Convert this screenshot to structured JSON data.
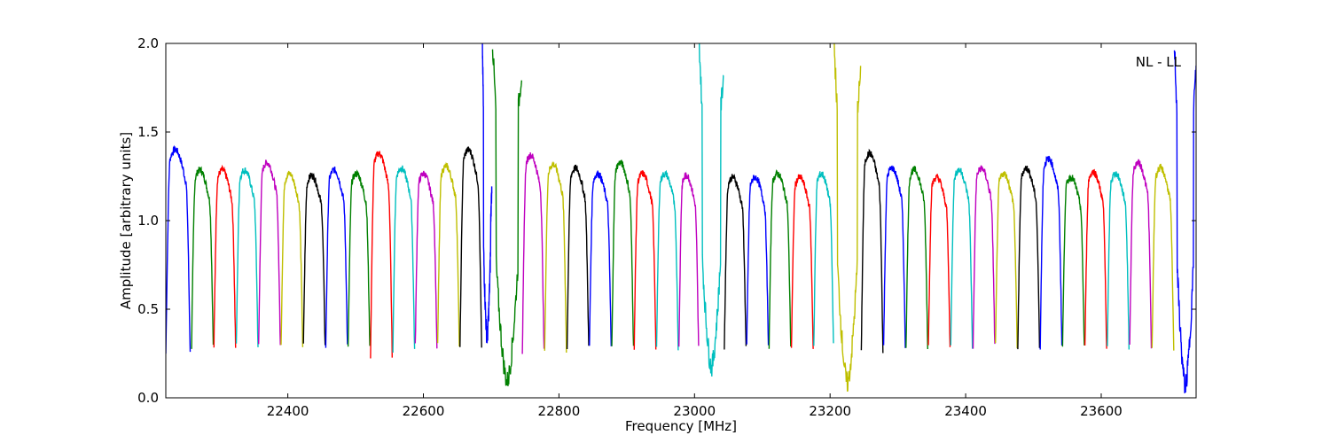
{
  "chart_data": {
    "type": "line",
    "title": "",
    "annotation": "NL - LL",
    "xlabel": "Frequency [MHz]",
    "ylabel": "Amplitude [arbitrary units]",
    "xlim": [
      22220,
      23740
    ],
    "ylim": [
      0.0,
      2.0
    ],
    "xticks": [
      22400,
      22600,
      22800,
      23000,
      23200,
      23400,
      23600
    ],
    "xtick_labels": [
      "22400",
      "22600",
      "22800",
      "23000",
      "23200",
      "23400",
      "23600"
    ],
    "yticks": [
      0.0,
      0.5,
      1.0,
      1.5,
      2.0
    ],
    "ytick_labels": [
      "0.0",
      "0.5",
      "1.0",
      "1.5",
      "2.0"
    ],
    "grid": false,
    "legend": "none",
    "color_cycle": [
      "#0000ff",
      "#008000",
      "#ff0000",
      "#00bfbf",
      "#bf00bf",
      "#bfbf00",
      "#000000"
    ],
    "subband_description": "Repeating sub-band passband segments (~32 MHz wide) centered near amplitude 1.2, each dropping to ~0.25 at its edges; colors cycle blue, green, red, cyan, magenta, olive, black.",
    "subbands": [
      {
        "x_start": 22220,
        "x_end": 22256,
        "color": "#0000ff",
        "peak": 1.35,
        "edge_min": 0.25
      },
      {
        "x_start": 22258,
        "x_end": 22290,
        "color": "#008000",
        "peak": 1.24,
        "edge_min": 0.29
      },
      {
        "x_start": 22291,
        "x_end": 22323,
        "color": "#ff0000",
        "peak": 1.24,
        "edge_min": 0.29
      },
      {
        "x_start": 22324,
        "x_end": 22356,
        "color": "#00bfbf",
        "peak": 1.24,
        "edge_min": 0.29
      },
      {
        "x_start": 22357,
        "x_end": 22389,
        "color": "#bf00bf",
        "peak": 1.28,
        "edge_min": 0.29
      },
      {
        "x_start": 22390,
        "x_end": 22422,
        "color": "#bfbf00",
        "peak": 1.22,
        "edge_min": 0.29
      },
      {
        "x_start": 22423,
        "x_end": 22455,
        "color": "#000000",
        "peak": 1.21,
        "edge_min": 0.29
      },
      {
        "x_start": 22456,
        "x_end": 22488,
        "color": "#0000ff",
        "peak": 1.24,
        "edge_min": 0.29
      },
      {
        "x_start": 22489,
        "x_end": 22521,
        "color": "#008000",
        "peak": 1.22,
        "edge_min": 0.28
      },
      {
        "x_start": 22522,
        "x_end": 22554,
        "color": "#ff0000",
        "peak": 1.33,
        "edge_min": 0.24
      },
      {
        "x_start": 22555,
        "x_end": 22587,
        "color": "#00bfbf",
        "peak": 1.25,
        "edge_min": 0.27
      },
      {
        "x_start": 22588,
        "x_end": 22620,
        "color": "#bf00bf",
        "peak": 1.22,
        "edge_min": 0.29
      },
      {
        "x_start": 22621,
        "x_end": 22653,
        "color": "#bfbf00",
        "peak": 1.26,
        "edge_min": 0.29
      },
      {
        "x_start": 22654,
        "x_end": 22686,
        "color": "#000000",
        "peak": 1.35,
        "edge_min": 0.27
      },
      {
        "x_start": 22687,
        "x_end": 22701,
        "color": "#0000ff",
        "peak": 1.2,
        "edge_min": 0.3,
        "spike": 2.0
      },
      {
        "x_start": 22702,
        "x_end": 22745,
        "color": "#008000",
        "peak": 1.83,
        "edge_min": 0.08,
        "spike": 2.0
      },
      {
        "x_start": 22746,
        "x_end": 22778,
        "color": "#bf00bf",
        "peak": 1.32,
        "edge_min": 0.26
      },
      {
        "x_start": 22779,
        "x_end": 22811,
        "color": "#bfbf00",
        "peak": 1.27,
        "edge_min": 0.27
      },
      {
        "x_start": 22812,
        "x_end": 22844,
        "color": "#000000",
        "peak": 1.25,
        "edge_min": 0.28
      },
      {
        "x_start": 22845,
        "x_end": 22877,
        "color": "#0000ff",
        "peak": 1.22,
        "edge_min": 0.29
      },
      {
        "x_start": 22878,
        "x_end": 22910,
        "color": "#008000",
        "peak": 1.28,
        "edge_min": 0.28
      },
      {
        "x_start": 22911,
        "x_end": 22943,
        "color": "#ff0000",
        "peak": 1.22,
        "edge_min": 0.29
      },
      {
        "x_start": 22944,
        "x_end": 22976,
        "color": "#00bfbf",
        "peak": 1.22,
        "edge_min": 0.28
      },
      {
        "x_start": 22977,
        "x_end": 23006,
        "color": "#bf00bf",
        "peak": 1.21,
        "edge_min": 0.28
      },
      {
        "x_start": 23007,
        "x_end": 23043,
        "color": "#00bfbf",
        "peak": 1.83,
        "edge_min": 0.15,
        "spike": 2.0
      },
      {
        "x_start": 23044,
        "x_end": 23076,
        "color": "#000000",
        "peak": 1.2,
        "edge_min": 0.29
      },
      {
        "x_start": 23077,
        "x_end": 23109,
        "color": "#0000ff",
        "peak": 1.2,
        "edge_min": 0.29
      },
      {
        "x_start": 23110,
        "x_end": 23142,
        "color": "#008000",
        "peak": 1.22,
        "edge_min": 0.29
      },
      {
        "x_start": 23143,
        "x_end": 23175,
        "color": "#ff0000",
        "peak": 1.2,
        "edge_min": 0.29
      },
      {
        "x_start": 23176,
        "x_end": 23205,
        "color": "#00bfbf",
        "peak": 1.22,
        "edge_min": 0.29
      },
      {
        "x_start": 23206,
        "x_end": 23245,
        "color": "#bfbf00",
        "peak": 1.83,
        "edge_min": 0.07,
        "spike": 2.0
      },
      {
        "x_start": 23246,
        "x_end": 23278,
        "color": "#000000",
        "peak": 1.33,
        "edge_min": 0.25
      },
      {
        "x_start": 23279,
        "x_end": 23311,
        "color": "#0000ff",
        "peak": 1.25,
        "edge_min": 0.29
      },
      {
        "x_start": 23312,
        "x_end": 23344,
        "color": "#008000",
        "peak": 1.24,
        "edge_min": 0.29
      },
      {
        "x_start": 23345,
        "x_end": 23377,
        "color": "#ff0000",
        "peak": 1.2,
        "edge_min": 0.29
      },
      {
        "x_start": 23378,
        "x_end": 23410,
        "color": "#00bfbf",
        "peak": 1.24,
        "edge_min": 0.29
      },
      {
        "x_start": 23411,
        "x_end": 23443,
        "color": "#bf00bf",
        "peak": 1.25,
        "edge_min": 0.29
      },
      {
        "x_start": 23444,
        "x_end": 23476,
        "color": "#bfbf00",
        "peak": 1.22,
        "edge_min": 0.29
      },
      {
        "x_start": 23477,
        "x_end": 23509,
        "color": "#000000",
        "peak": 1.25,
        "edge_min": 0.29
      },
      {
        "x_start": 23510,
        "x_end": 23542,
        "color": "#0000ff",
        "peak": 1.3,
        "edge_min": 0.29
      },
      {
        "x_start": 23543,
        "x_end": 23575,
        "color": "#008000",
        "peak": 1.2,
        "edge_min": 0.29
      },
      {
        "x_start": 23576,
        "x_end": 23608,
        "color": "#ff0000",
        "peak": 1.23,
        "edge_min": 0.29
      },
      {
        "x_start": 23609,
        "x_end": 23641,
        "color": "#00bfbf",
        "peak": 1.22,
        "edge_min": 0.29
      },
      {
        "x_start": 23642,
        "x_end": 23674,
        "color": "#bf00bf",
        "peak": 1.28,
        "edge_min": 0.29
      },
      {
        "x_start": 23675,
        "x_end": 23707,
        "color": "#bfbf00",
        "peak": 1.25,
        "edge_min": 0.27
      },
      {
        "x_start": 23708,
        "x_end": 23740,
        "color": "#0000ff",
        "peak": 1.85,
        "edge_min": 0.06,
        "spike": 2.0
      }
    ]
  }
}
